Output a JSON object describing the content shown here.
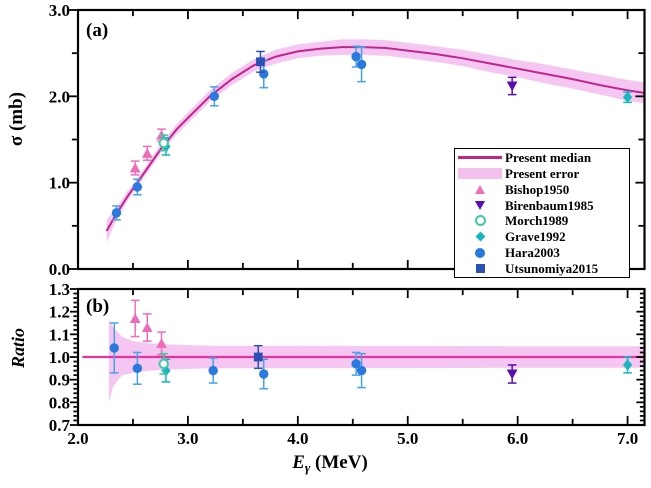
{
  "figure": {
    "background": "#ffffff",
    "xlabel": {
      "variable": "E",
      "subscript": "γ",
      "unit": " (MeV)"
    },
    "x_tick_values": [
      2.0,
      3.0,
      4.0,
      5.0,
      6.0,
      7.0
    ],
    "x_tick_labels": [
      "2.0",
      "3.0",
      "4.0",
      "5.0",
      "6.0",
      "7.0"
    ],
    "x_minor_step": 0.5
  },
  "colors": {
    "axis": "#000000",
    "median_line": "#c0268c",
    "ratio_median_line": "#e832a2",
    "error_band": "#f3c0f0",
    "bishop1950": "#ec6eb9",
    "birenbaum1985": "#5c0cb0",
    "morch1989": "#3fc8a2",
    "grave1992": "#17b6c0",
    "hara2003": "#2979df",
    "hara2003_errorbar": "#46a3e8",
    "utsunomiya2015": "#2a52b4"
  },
  "legend": {
    "entries": [
      {
        "label": "Present median",
        "swatch": "line"
      },
      {
        "label": "Present error",
        "swatch": "band"
      },
      {
        "label": "Bishop1950",
        "swatch": "triangle-up"
      },
      {
        "label": "Birenbaum1985",
        "swatch": "triangle-down"
      },
      {
        "label": "Morch1989",
        "swatch": "open-circle"
      },
      {
        "label": "Grave1992",
        "swatch": "diamond"
      },
      {
        "label": "Hara2003",
        "swatch": "circle"
      },
      {
        "label": "Utsunomiya2015",
        "swatch": "square"
      }
    ]
  },
  "chart_data": [
    {
      "id": "cross_section_panel",
      "type": "line",
      "panel_label": "(a)",
      "ylabel": "σ (mb)",
      "xlim": [
        2.0,
        7.154
      ],
      "ylim": [
        0.0,
        3.0
      ],
      "y_label_ticks": [
        0.0,
        1.0,
        2.0,
        3.0
      ],
      "y_tick_labels": [
        "0.0",
        "1.0",
        "2.0",
        "3.0"
      ],
      "y_minor_step": 0.5,
      "grid": false,
      "median_curve": [
        [
          2.26,
          0.44
        ],
        [
          2.35,
          0.64
        ],
        [
          2.45,
          0.84
        ],
        [
          2.55,
          1.02
        ],
        [
          2.65,
          1.2
        ],
        [
          2.76,
          1.4
        ],
        [
          2.9,
          1.62
        ],
        [
          3.0,
          1.75
        ],
        [
          3.2,
          2.0
        ],
        [
          3.4,
          2.2
        ],
        [
          3.6,
          2.36
        ],
        [
          3.8,
          2.46
        ],
        [
          4.0,
          2.52
        ],
        [
          4.2,
          2.55
        ],
        [
          4.4,
          2.57
        ],
        [
          4.6,
          2.57
        ],
        [
          4.8,
          2.56
        ],
        [
          5.0,
          2.53
        ],
        [
          5.25,
          2.49
        ],
        [
          5.5,
          2.44
        ],
        [
          5.75,
          2.38
        ],
        [
          6.0,
          2.32
        ],
        [
          6.25,
          2.26
        ],
        [
          6.5,
          2.2
        ],
        [
          6.75,
          2.13
        ],
        [
          7.0,
          2.07
        ],
        [
          7.15,
          2.04
        ]
      ],
      "error_band": [
        [
          2.26,
          0.31,
          0.57
        ],
        [
          2.35,
          0.57,
          0.71
        ],
        [
          2.45,
          0.79,
          0.9
        ],
        [
          2.55,
          0.97,
          1.07
        ],
        [
          2.65,
          1.15,
          1.25
        ],
        [
          2.76,
          1.35,
          1.46
        ],
        [
          2.9,
          1.56,
          1.68
        ],
        [
          3.0,
          1.69,
          1.81
        ],
        [
          3.2,
          1.94,
          2.07
        ],
        [
          3.4,
          2.13,
          2.27
        ],
        [
          3.6,
          2.29,
          2.43
        ],
        [
          3.8,
          2.38,
          2.54
        ],
        [
          4.0,
          2.44,
          2.6
        ],
        [
          4.2,
          2.47,
          2.63
        ],
        [
          4.4,
          2.48,
          2.66
        ],
        [
          4.6,
          2.48,
          2.66
        ],
        [
          4.8,
          2.47,
          2.65
        ],
        [
          5.0,
          2.44,
          2.62
        ],
        [
          5.25,
          2.4,
          2.58
        ],
        [
          5.5,
          2.35,
          2.54
        ],
        [
          5.75,
          2.28,
          2.48
        ],
        [
          6.0,
          2.22,
          2.42
        ],
        [
          6.25,
          2.15,
          2.37
        ],
        [
          6.5,
          2.09,
          2.31
        ],
        [
          6.75,
          2.02,
          2.25
        ],
        [
          7.0,
          1.95,
          2.19
        ],
        [
          7.15,
          1.92,
          2.16
        ]
      ],
      "series": [
        {
          "name": "Bishop1950",
          "marker": "triangle-up",
          "points": [
            [
              2.52,
              1.17,
              0.08
            ],
            [
              2.63,
              1.34,
              0.08
            ],
            [
              2.76,
              1.55,
              0.07
            ]
          ]
        },
        {
          "name": "Birenbaum1985",
          "marker": "triangle-down",
          "points": [
            [
              5.95,
              2.12,
              0.1
            ]
          ]
        },
        {
          "name": "Morch1989",
          "marker": "open-circle",
          "points": [
            [
              2.78,
              1.46,
              0.09
            ]
          ]
        },
        {
          "name": "Grave1992",
          "marker": "diamond",
          "points": [
            [
              2.8,
              1.42,
              0.1
            ],
            [
              7.0,
              1.99,
              0.06
            ]
          ]
        },
        {
          "name": "Hara2003",
          "marker": "circle",
          "points": [
            [
              2.35,
              0.65,
              0.08
            ],
            [
              2.54,
              0.95,
              0.09
            ],
            [
              3.24,
              2.0,
              0.11
            ],
            [
              3.69,
              2.26,
              0.16
            ],
            [
              4.53,
              2.46,
              0.12
            ],
            [
              4.58,
              2.37,
              0.2
            ]
          ]
        },
        {
          "name": "Utsunomiya2015",
          "marker": "square",
          "points": [
            [
              3.66,
              2.4,
              0.12
            ]
          ]
        }
      ]
    },
    {
      "id": "ratio_panel",
      "type": "line",
      "panel_label": "(b)",
      "ylabel": "Ratio",
      "xlim": [
        2.0,
        7.154
      ],
      "ylim": [
        0.7,
        1.3
      ],
      "y_label_ticks": [
        0.7,
        0.8,
        0.9,
        1.0,
        1.1,
        1.2,
        1.3
      ],
      "y_tick_labels": [
        "0.7",
        "0.8",
        "0.9",
        "1.0",
        "1.1",
        "1.2",
        "1.3"
      ],
      "y_minor_step": 0.02,
      "grid": false,
      "median_line": {
        "value": 1.0,
        "from": 2.04,
        "to": 7.154
      },
      "error_band": [
        [
          2.28,
          0.8,
          1.17
        ],
        [
          2.32,
          0.87,
          1.13
        ],
        [
          2.4,
          0.92,
          1.09
        ],
        [
          2.5,
          0.93,
          1.07
        ],
        [
          2.65,
          0.94,
          1.06
        ],
        [
          2.85,
          0.945,
          1.055
        ],
        [
          3.2,
          0.95,
          1.05
        ],
        [
          4.0,
          0.95,
          1.05
        ],
        [
          5.0,
          0.951,
          1.049
        ],
        [
          6.0,
          0.953,
          1.047
        ],
        [
          7.154,
          0.953,
          1.047
        ]
      ],
      "series": [
        {
          "name": "Bishop1950",
          "marker": "triangle-up",
          "points": [
            [
              2.52,
              1.17,
              0.08
            ],
            [
              2.63,
              1.13,
              0.06
            ],
            [
              2.76,
              1.06,
              0.05
            ]
          ]
        },
        {
          "name": "Birenbaum1985",
          "marker": "triangle-down",
          "points": [
            [
              5.95,
              0.925,
              0.04
            ]
          ]
        },
        {
          "name": "Morch1989",
          "marker": "open-circle",
          "points": [
            [
              2.78,
              0.97,
              0.045
            ]
          ]
        },
        {
          "name": "Grave1992",
          "marker": "diamond",
          "points": [
            [
              2.8,
              0.94,
              0.05
            ],
            [
              7.0,
              0.965,
              0.035
            ]
          ]
        },
        {
          "name": "Hara2003",
          "marker": "circle",
          "points": [
            [
              2.33,
              1.04,
              0.11
            ],
            [
              2.54,
              0.95,
              0.07
            ],
            [
              3.23,
              0.94,
              0.055
            ],
            [
              3.69,
              0.925,
              0.065
            ],
            [
              4.53,
              0.97,
              0.05
            ],
            [
              4.58,
              0.94,
              0.075
            ]
          ]
        },
        {
          "name": "Utsunomiya2015",
          "marker": "square",
          "points": [
            [
              3.64,
              1.0,
              0.05
            ]
          ]
        }
      ]
    }
  ]
}
